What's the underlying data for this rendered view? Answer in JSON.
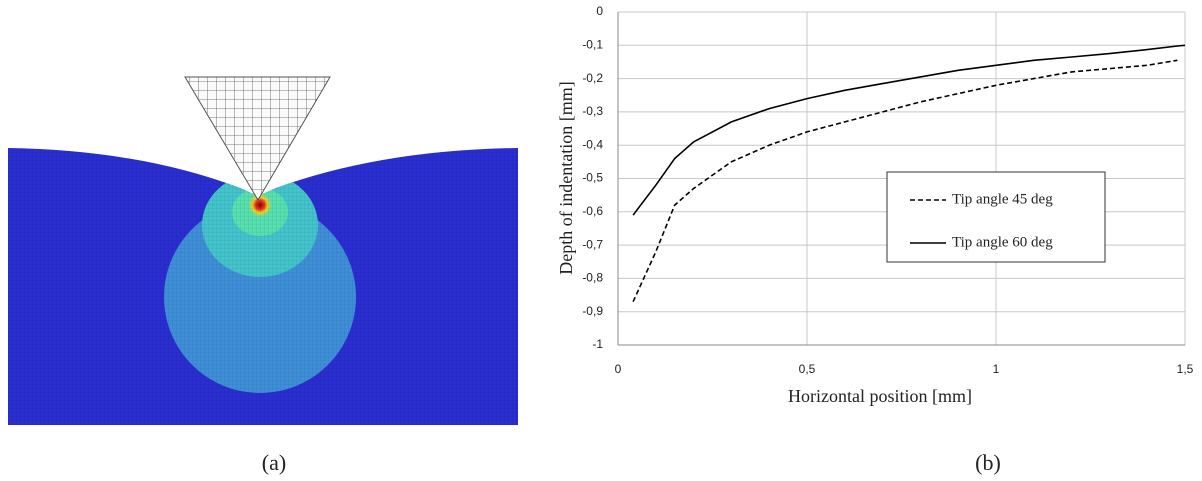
{
  "chart_data": {
    "type": "line",
    "x_label": "Horizontal position [mm]",
    "y_label": "Depth of indentation [mm]",
    "x": [
      0.04,
      0.1,
      0.15,
      0.2,
      0.3,
      0.4,
      0.5,
      0.6,
      0.7,
      0.8,
      0.9,
      1.0,
      1.1,
      1.2,
      1.3,
      1.4,
      1.48,
      1.5
    ],
    "series": [
      {
        "name": "Tip angle 45 deg",
        "color": "#000000",
        "style": "dashed",
        "values": [
          -0.87,
          -0.72,
          -0.58,
          -0.53,
          -0.45,
          -0.4,
          -0.36,
          -0.33,
          -0.3,
          -0.27,
          -0.245,
          -0.22,
          -0.2,
          -0.18,
          -0.17,
          -0.16,
          -0.145,
          null
        ]
      },
      {
        "name": "Tip angle 60 deg",
        "color": "#000000",
        "style": "solid",
        "values": [
          -0.61,
          -0.52,
          -0.44,
          -0.39,
          -0.33,
          -0.29,
          -0.26,
          -0.235,
          -0.215,
          -0.195,
          -0.175,
          -0.16,
          -0.145,
          -0.135,
          -0.125,
          -0.113,
          -0.102,
          -0.1
        ]
      }
    ],
    "xlim": [
      0,
      1.5
    ],
    "xticks": [
      0,
      {
        "value": 0.5,
        "label": "0,5"
      },
      1,
      {
        "value": 1.5,
        "label": "1,5"
      }
    ],
    "ylim": [
      -1,
      0
    ],
    "yticks": [
      0,
      {
        "value": -0.1,
        "label": "-0,1"
      },
      {
        "value": -0.2,
        "label": "-0,2"
      },
      {
        "value": -0.3,
        "label": "-0,3"
      },
      {
        "value": -0.4,
        "label": "-0,4"
      },
      {
        "value": -0.5,
        "label": "-0,5"
      },
      {
        "value": -0.6,
        "label": "-0,6"
      },
      {
        "value": -0.7,
        "label": "-0,7"
      },
      {
        "value": -0.8,
        "label": "-0,8"
      },
      {
        "value": -0.9,
        "label": "-0,9"
      },
      -1
    ],
    "grid": true
  },
  "captions": [
    "(a)",
    "(b)"
  ]
}
